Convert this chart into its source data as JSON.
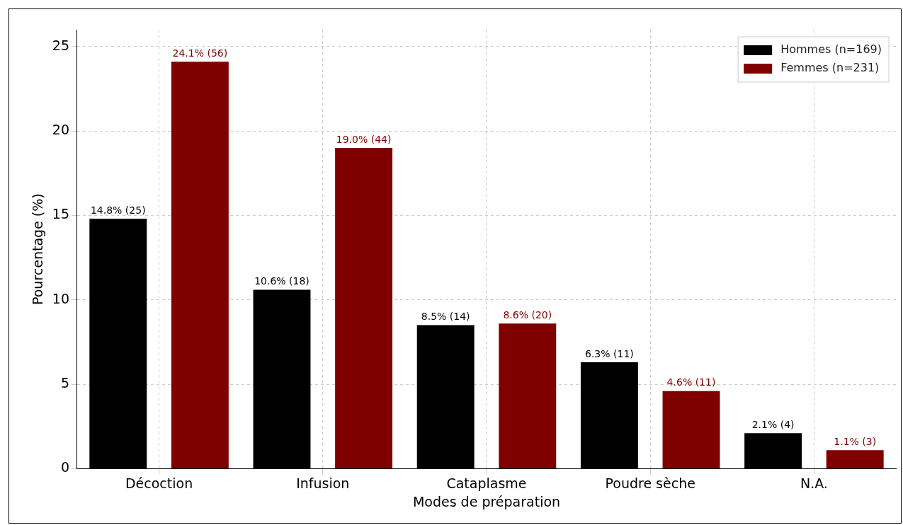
{
  "chart_data": {
    "type": "bar",
    "xlabel": "Modes de préparation",
    "ylabel": "Pourcentage (%)",
    "categories": [
      "Décoction",
      "Infusion",
      "Cataplasme",
      "Poudre sèche",
      "N.A."
    ],
    "series": [
      {
        "name": "Hommes (n=169)",
        "color": "#000000",
        "values": [
          14.8,
          10.6,
          8.5,
          6.3,
          2.1
        ],
        "value_labels": [
          "14.8% (25)",
          "10.6% (18)",
          "8.5% (14)",
          "6.3% (11)",
          "2.1% (4)"
        ]
      },
      {
        "name": "Femmes (n=231)",
        "color": "#800000",
        "values": [
          24.1,
          19.0,
          8.6,
          4.6,
          1.1
        ],
        "value_labels": [
          "24.1% (56)",
          "19.0% (44)",
          "8.6% (20)",
          "4.6% (11)",
          "1.1% (3)"
        ]
      }
    ],
    "ylim": [
      0,
      26
    ],
    "yticks": [
      0,
      5,
      10,
      15,
      20,
      25
    ],
    "grid": true,
    "legend": "top right"
  }
}
